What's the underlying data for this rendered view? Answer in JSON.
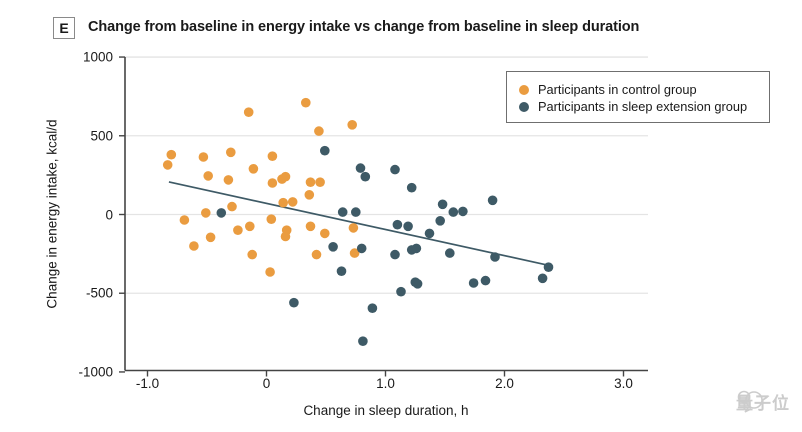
{
  "panel_label": "E",
  "title": "Change from baseline in energy intake vs change from baseline in sleep duration",
  "watermark": "量子位",
  "colors": {
    "control": "#EA9C40",
    "extension": "#3E5A66",
    "trend": "#3E5A66",
    "grid": "#E4E4E4",
    "axis": "#444444",
    "text": "#1A1A1A",
    "watermark": "#CCCCCC"
  },
  "legend": {
    "items": [
      {
        "label": "Participants in control group",
        "series": "control"
      },
      {
        "label": "Participants in sleep extension group",
        "series": "extension"
      }
    ]
  },
  "chart_data": {
    "type": "scatter",
    "title": "Change from baseline in energy intake vs change from baseline in sleep duration",
    "xlabel": "Change in sleep duration, h",
    "ylabel": "Change in energy intake, kcal/d",
    "xlim": [
      -1.2,
      3.2
    ],
    "ylim": [
      -1000,
      1000
    ],
    "x_ticks": [
      "-1.0",
      "0",
      "1.0",
      "2.0",
      "3.0"
    ],
    "y_ticks": [
      "1000",
      "500",
      "0",
      "-500",
      "-1000"
    ],
    "y_gridlines": [
      1000,
      500,
      0,
      -500
    ],
    "grid": "horizontal",
    "legend_position": "top-right",
    "series": [
      {
        "name": "Participants in control group",
        "color_key": "control",
        "points": [
          [
            -0.15,
            650
          ],
          [
            0.33,
            710
          ],
          [
            0.72,
            570
          ],
          [
            0.44,
            530
          ],
          [
            -0.3,
            395
          ],
          [
            -0.8,
            380
          ],
          [
            -0.83,
            315
          ],
          [
            -0.53,
            365
          ],
          [
            0.05,
            370
          ],
          [
            -0.11,
            290
          ],
          [
            -0.49,
            245
          ],
          [
            -0.32,
            220
          ],
          [
            0.16,
            240
          ],
          [
            0.13,
            225
          ],
          [
            0.05,
            200
          ],
          [
            0.37,
            205
          ],
          [
            0.45,
            205
          ],
          [
            0.36,
            125
          ],
          [
            0.22,
            80
          ],
          [
            0.14,
            75
          ],
          [
            -0.29,
            50
          ],
          [
            -0.51,
            10
          ],
          [
            0.04,
            -30
          ],
          [
            -0.69,
            -35
          ],
          [
            -0.14,
            -75
          ],
          [
            -0.24,
            -100
          ],
          [
            -0.47,
            -145
          ],
          [
            -0.61,
            -200
          ],
          [
            -0.12,
            -255
          ],
          [
            0.03,
            -365
          ],
          [
            0.17,
            -100
          ],
          [
            0.16,
            -140
          ],
          [
            0.37,
            -75
          ],
          [
            0.49,
            -120
          ],
          [
            0.42,
            -255
          ],
          [
            0.73,
            -85
          ],
          [
            0.74,
            -245
          ]
        ]
      },
      {
        "name": "Participants in sleep extension group",
        "color_key": "extension",
        "points": [
          [
            -0.38,
            10
          ],
          [
            0.49,
            405
          ],
          [
            0.79,
            295
          ],
          [
            0.83,
            240
          ],
          [
            1.08,
            285
          ],
          [
            1.22,
            170
          ],
          [
            0.64,
            15
          ],
          [
            0.75,
            15
          ],
          [
            1.48,
            65
          ],
          [
            1.57,
            15
          ],
          [
            1.65,
            20
          ],
          [
            1.46,
            -40
          ],
          [
            1.9,
            90
          ],
          [
            1.1,
            -65
          ],
          [
            1.19,
            -75
          ],
          [
            0.56,
            -205
          ],
          [
            0.8,
            -215
          ],
          [
            1.22,
            -225
          ],
          [
            1.26,
            -215
          ],
          [
            1.37,
            -120
          ],
          [
            1.54,
            -245
          ],
          [
            0.63,
            -360
          ],
          [
            1.08,
            -255
          ],
          [
            1.25,
            -430
          ],
          [
            1.27,
            -440
          ],
          [
            1.13,
            -490
          ],
          [
            0.89,
            -595
          ],
          [
            0.81,
            -805
          ],
          [
            0.23,
            -560
          ],
          [
            1.74,
            -435
          ],
          [
            1.84,
            -420
          ],
          [
            1.92,
            -270
          ],
          [
            2.37,
            -335
          ],
          [
            2.32,
            -405
          ]
        ]
      }
    ],
    "trendline": {
      "x1": -0.82,
      "y1": 207,
      "x2": 2.36,
      "y2": -321
    }
  }
}
